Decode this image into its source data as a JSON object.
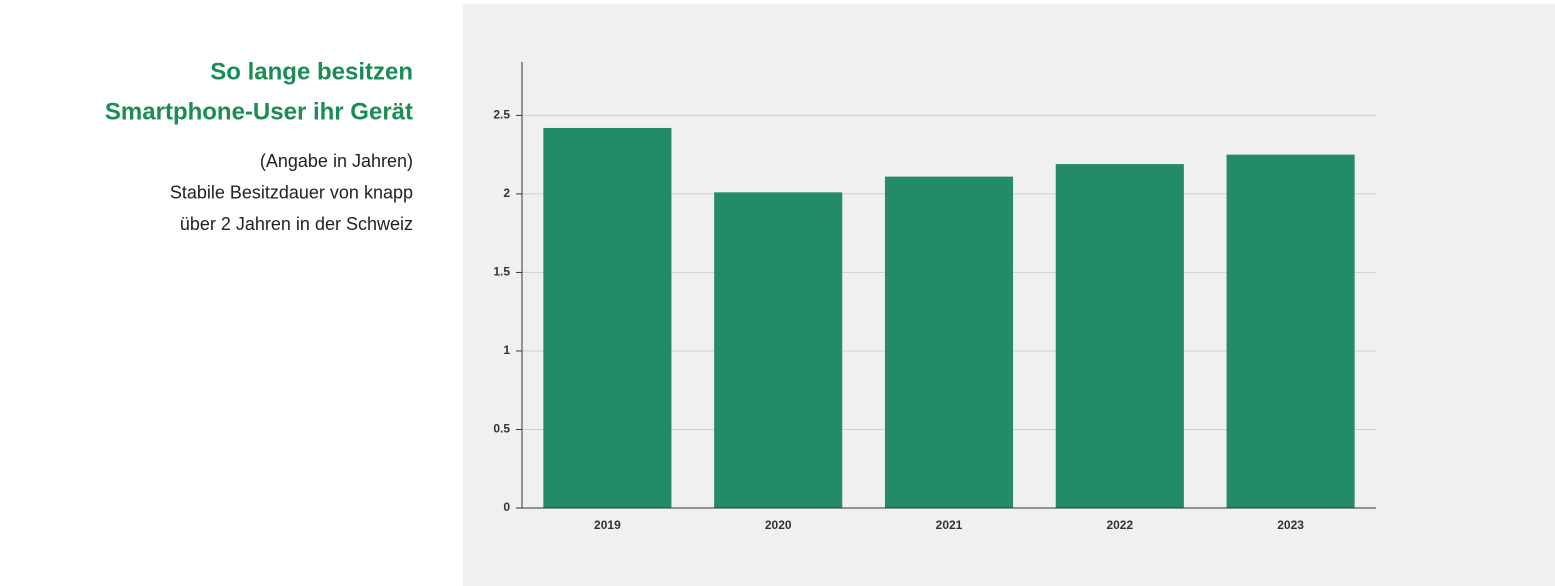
{
  "chart_data": {
    "type": "bar",
    "title": [
      "So lange besitzen",
      "Smartphone-User ihr Gerät"
    ],
    "subtitle": [
      "(Angabe in Jahren)",
      "Stabile Besitzdauer von knapp",
      "über 2 Jahren in der Schweiz"
    ],
    "categories": [
      "2019",
      "2020",
      "2021",
      "2022",
      "2023"
    ],
    "values": [
      2.42,
      2.01,
      2.11,
      2.19,
      2.25
    ],
    "color": "#238b65",
    "ylim": [
      0,
      2.84
    ],
    "yticks": [
      0,
      0.5,
      1,
      1.5,
      2,
      2.5
    ],
    "grid": true
  }
}
